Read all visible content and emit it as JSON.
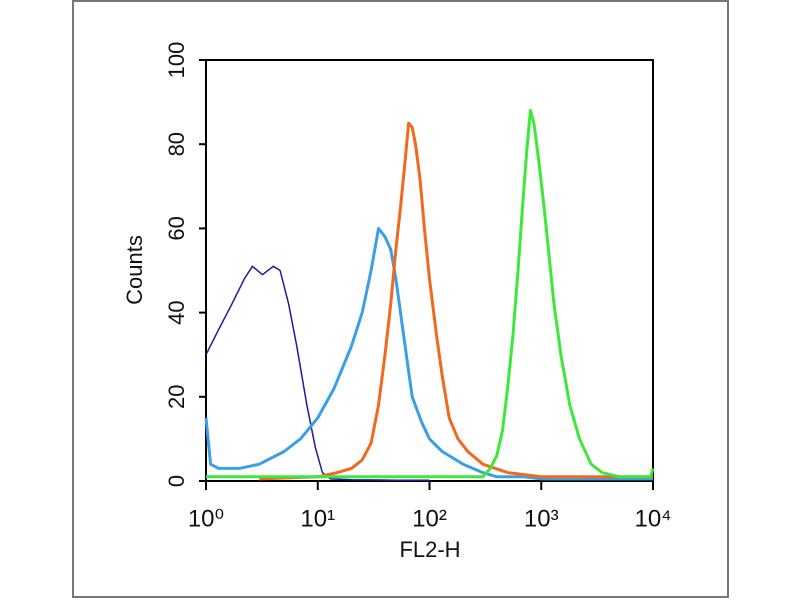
{
  "chart_data": {
    "type": "line",
    "x_label": "FL2-H",
    "y_label": "Counts",
    "xscale": "log",
    "xlim": [
      1,
      10000
    ],
    "ylim": [
      0,
      100
    ],
    "xticks": [
      {
        "value": 1,
        "label": "10⁰"
      },
      {
        "value": 10,
        "label": "10¹"
      },
      {
        "value": 100,
        "label": "10²"
      },
      {
        "value": 1000,
        "label": "10³"
      },
      {
        "value": 10000,
        "label": "10⁴"
      }
    ],
    "yticks": [
      0,
      20,
      40,
      60,
      80,
      100
    ],
    "series": [
      {
        "color": "#1c1c9e",
        "line_width": 1.5,
        "x": [
          1,
          1.3,
          1.7,
          2.2,
          2.6,
          3.2,
          4,
          4.6,
          5.5,
          6.5,
          8,
          9.5,
          11,
          13,
          20,
          50,
          100
        ],
        "values": [
          30,
          36,
          42,
          48,
          51,
          49,
          51,
          50,
          42,
          32,
          18,
          8,
          2,
          0.5,
          0.3,
          0.2,
          0.2
        ]
      },
      {
        "color": "#3a9fe6",
        "line_width": 3,
        "x": [
          1,
          1.1,
          1.3,
          2,
          3,
          5,
          7,
          10,
          14,
          20,
          25,
          30,
          35,
          40,
          45,
          50,
          55,
          62,
          70,
          85,
          100,
          130,
          200,
          300,
          400,
          700,
          1000,
          10000
        ],
        "values": [
          15,
          4,
          3,
          3,
          4,
          7,
          10,
          15,
          22,
          32,
          40,
          50,
          60,
          58,
          55,
          48,
          40,
          30,
          20,
          14,
          10,
          7,
          4,
          2,
          1,
          1,
          0.5,
          0.5
        ]
      },
      {
        "color": "#f0691e",
        "line_width": 3,
        "x": [
          3,
          10,
          15,
          20,
          25,
          30,
          35,
          40,
          45,
          50,
          55,
          60,
          65,
          70,
          75,
          82,
          90,
          100,
          115,
          130,
          150,
          180,
          220,
          300,
          500,
          1000,
          10000
        ],
        "values": [
          0.5,
          1,
          2,
          3,
          5,
          9,
          18,
          30,
          42,
          55,
          65,
          75,
          85,
          84,
          80,
          72,
          60,
          48,
          35,
          25,
          15,
          10,
          7,
          4,
          2,
          1,
          1
        ]
      },
      {
        "color": "#3ee83a",
        "line_width": 3,
        "x": [
          1,
          10,
          100,
          300,
          350,
          400,
          450,
          500,
          560,
          620,
          680,
          740,
          800,
          860,
          950,
          1050,
          1150,
          1300,
          1500,
          1800,
          2200,
          2800,
          3500,
          5000,
          9500,
          10000
        ],
        "values": [
          1,
          1,
          1,
          1,
          3,
          6,
          12,
          22,
          35,
          50,
          65,
          78,
          88,
          85,
          76,
          66,
          56,
          42,
          30,
          18,
          10,
          4,
          2,
          1,
          1,
          3
        ]
      }
    ]
  }
}
